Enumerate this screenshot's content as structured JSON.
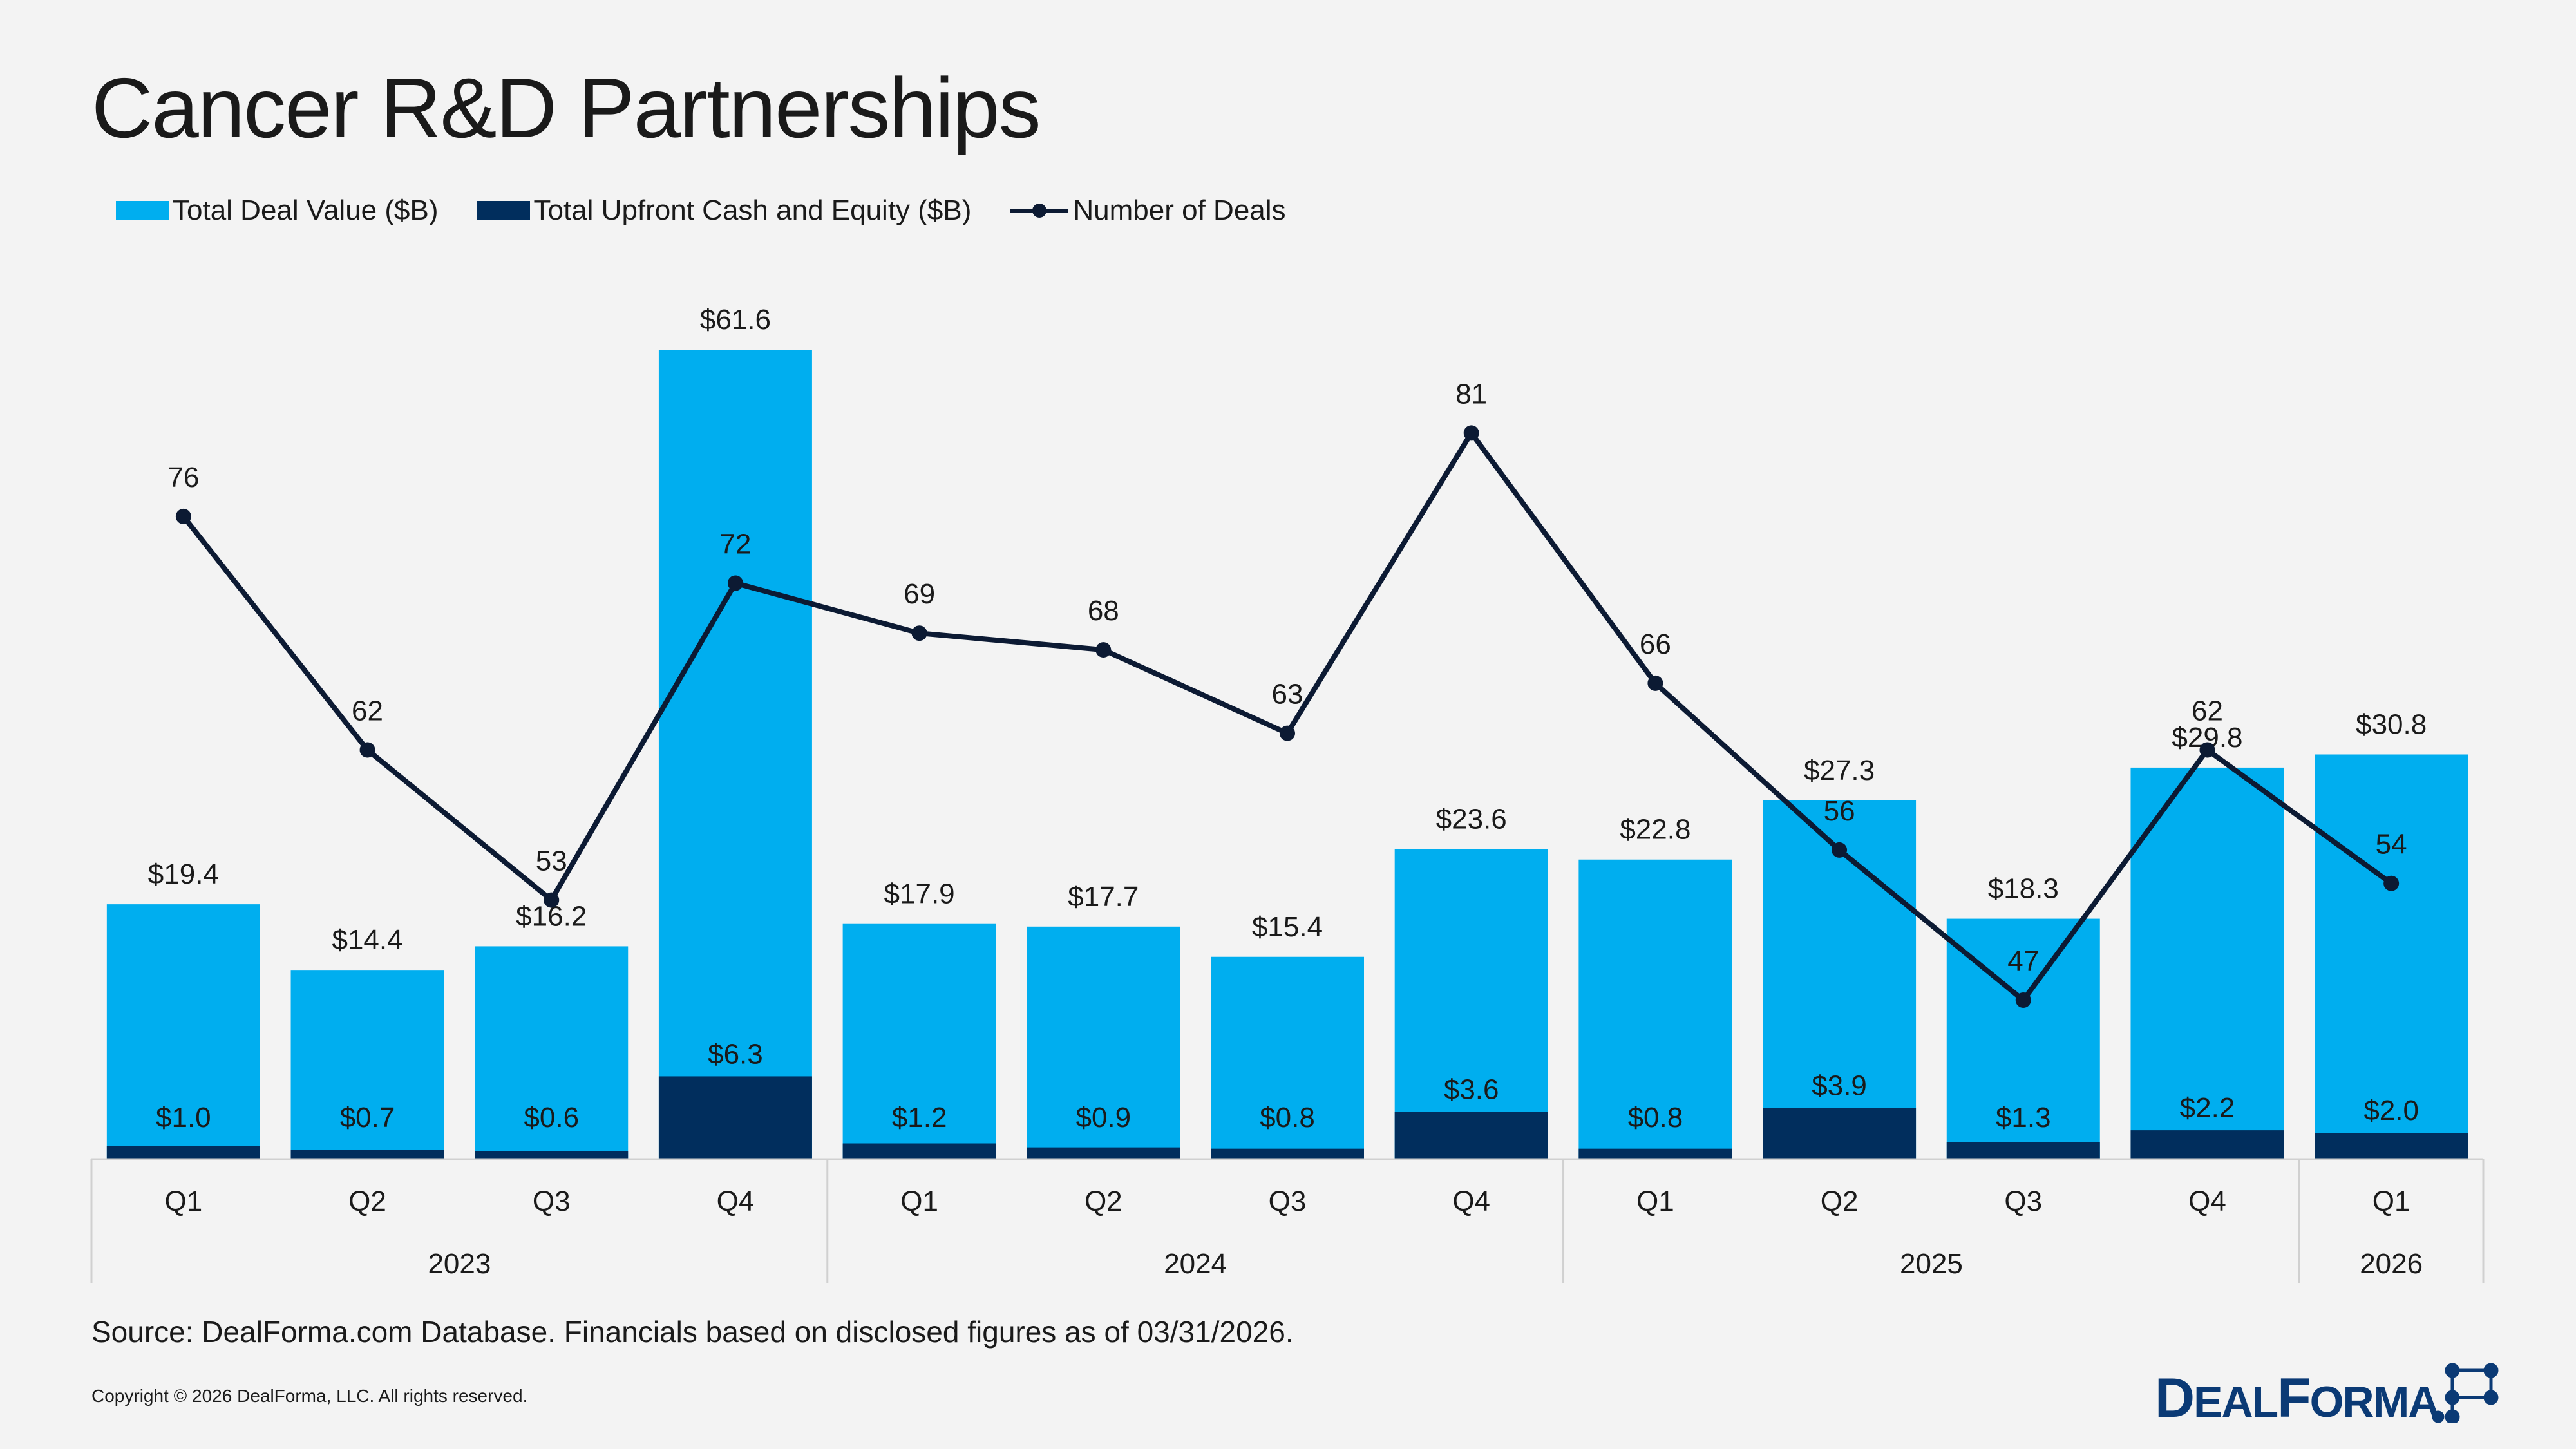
{
  "title": "Cancer R&D Partnerships",
  "legend": {
    "total": "Total Deal Value ($B)",
    "upfront": "Total Upfront Cash and Equity ($B)",
    "deals": "Number of Deals"
  },
  "colors": {
    "total": "#00aeef",
    "upfront": "#012e5d",
    "deals": "#0c1a33",
    "axis": "#d0d0d0"
  },
  "chart_data": {
    "type": "bar",
    "categories": [
      "Q1",
      "Q2",
      "Q3",
      "Q4",
      "Q1",
      "Q2",
      "Q3",
      "Q4",
      "Q1",
      "Q2",
      "Q3",
      "Q4",
      "Q1"
    ],
    "groups": [
      {
        "label": "2023",
        "count": 4
      },
      {
        "label": "2024",
        "count": 4
      },
      {
        "label": "2025",
        "count": 4
      },
      {
        "label": "2026",
        "count": 1
      }
    ],
    "series": [
      {
        "name": "Total Deal Value ($B)",
        "kind": "bar",
        "values": [
          19.4,
          14.4,
          16.2,
          61.6,
          17.9,
          17.7,
          15.4,
          23.6,
          22.8,
          27.3,
          18.3,
          29.8,
          30.8
        ],
        "labels": [
          "$19.4",
          "$14.4",
          "$16.2",
          "$61.6",
          "$17.9",
          "$17.7",
          "$15.4",
          "$23.6",
          "$22.8",
          "$27.3",
          "$18.3",
          "$29.8",
          "$30.8"
        ]
      },
      {
        "name": "Total Upfront Cash and Equity ($B)",
        "kind": "bar",
        "values": [
          1.0,
          0.7,
          0.6,
          6.3,
          1.2,
          0.9,
          0.8,
          3.6,
          0.8,
          3.9,
          1.3,
          2.2,
          2.0
        ],
        "labels": [
          "$1.0",
          "$0.7",
          "$0.6",
          "$6.3",
          "$1.2",
          "$0.9",
          "$0.8",
          "$3.6",
          "$0.8",
          "$3.9",
          "$1.3",
          "$2.2",
          "$2.0"
        ]
      },
      {
        "name": "Number of Deals",
        "kind": "line",
        "values": [
          76,
          62,
          53,
          72,
          69,
          68,
          63,
          81,
          66,
          56,
          47,
          62,
          54
        ]
      }
    ],
    "ylim_value": [
      0,
      62
    ],
    "ylim_deals": [
      0,
      81
    ],
    "grid": false,
    "legend_position": "top-left"
  },
  "source": "Source: DealForma.com Database. Financials based on disclosed figures as of 03/31/2026.",
  "copyright": "Copyright © 2026 DealForma, LLC. All rights reserved.",
  "logo": {
    "text_main": "DEALFORMA",
    "text_initial": "D",
    "text_rest": "EAL",
    "text_initial2": "F",
    "text_rest2": "ORMA"
  }
}
